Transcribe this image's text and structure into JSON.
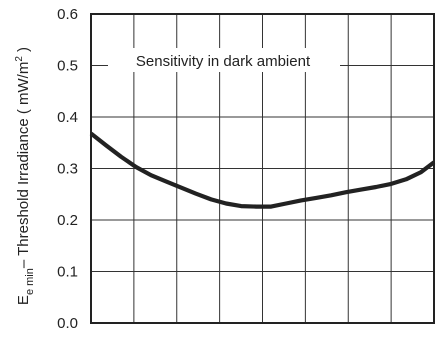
{
  "chart_data": {
    "type": "line",
    "title": "",
    "annotation": "Sensitivity in dark ambient",
    "ylabel": {
      "main": "E",
      "subscript": "e min",
      "rest": "– Threshold Irradiance ( mW/m",
      "superscript": "2",
      "close": " )"
    },
    "xlabel": "",
    "ylim": [
      0,
      0.6
    ],
    "yticks": [
      {
        "value": 0.0,
        "label": "0.0"
      },
      {
        "value": 0.1,
        "label": "0.1"
      },
      {
        "value": 0.2,
        "label": "0.2"
      },
      {
        "value": 0.3,
        "label": "0.3"
      },
      {
        "value": 0.4,
        "label": "0.4"
      },
      {
        "value": 0.5,
        "label": "0.5"
      },
      {
        "value": 0.6,
        "label": "0.6"
      }
    ],
    "xlim": [
      0,
      8
    ],
    "x_grid_divisions": 8,
    "grid": true,
    "series": [
      {
        "color": "#222222",
        "x": [
          0,
          0.35,
          0.7,
          1.05,
          1.4,
          1.75,
          2.1,
          2.45,
          2.8,
          3.15,
          3.5,
          3.85,
          4.2,
          4.55,
          4.9,
          5.25,
          5.6,
          5.95,
          6.3,
          6.65,
          7.0,
          7.35,
          7.7,
          8.0
        ],
        "y": [
          0.368,
          0.345,
          0.323,
          0.303,
          0.287,
          0.275,
          0.263,
          0.251,
          0.24,
          0.232,
          0.227,
          0.226,
          0.226,
          0.232,
          0.238,
          0.243,
          0.248,
          0.254,
          0.259,
          0.264,
          0.27,
          0.279,
          0.293,
          0.312
        ]
      }
    ]
  }
}
